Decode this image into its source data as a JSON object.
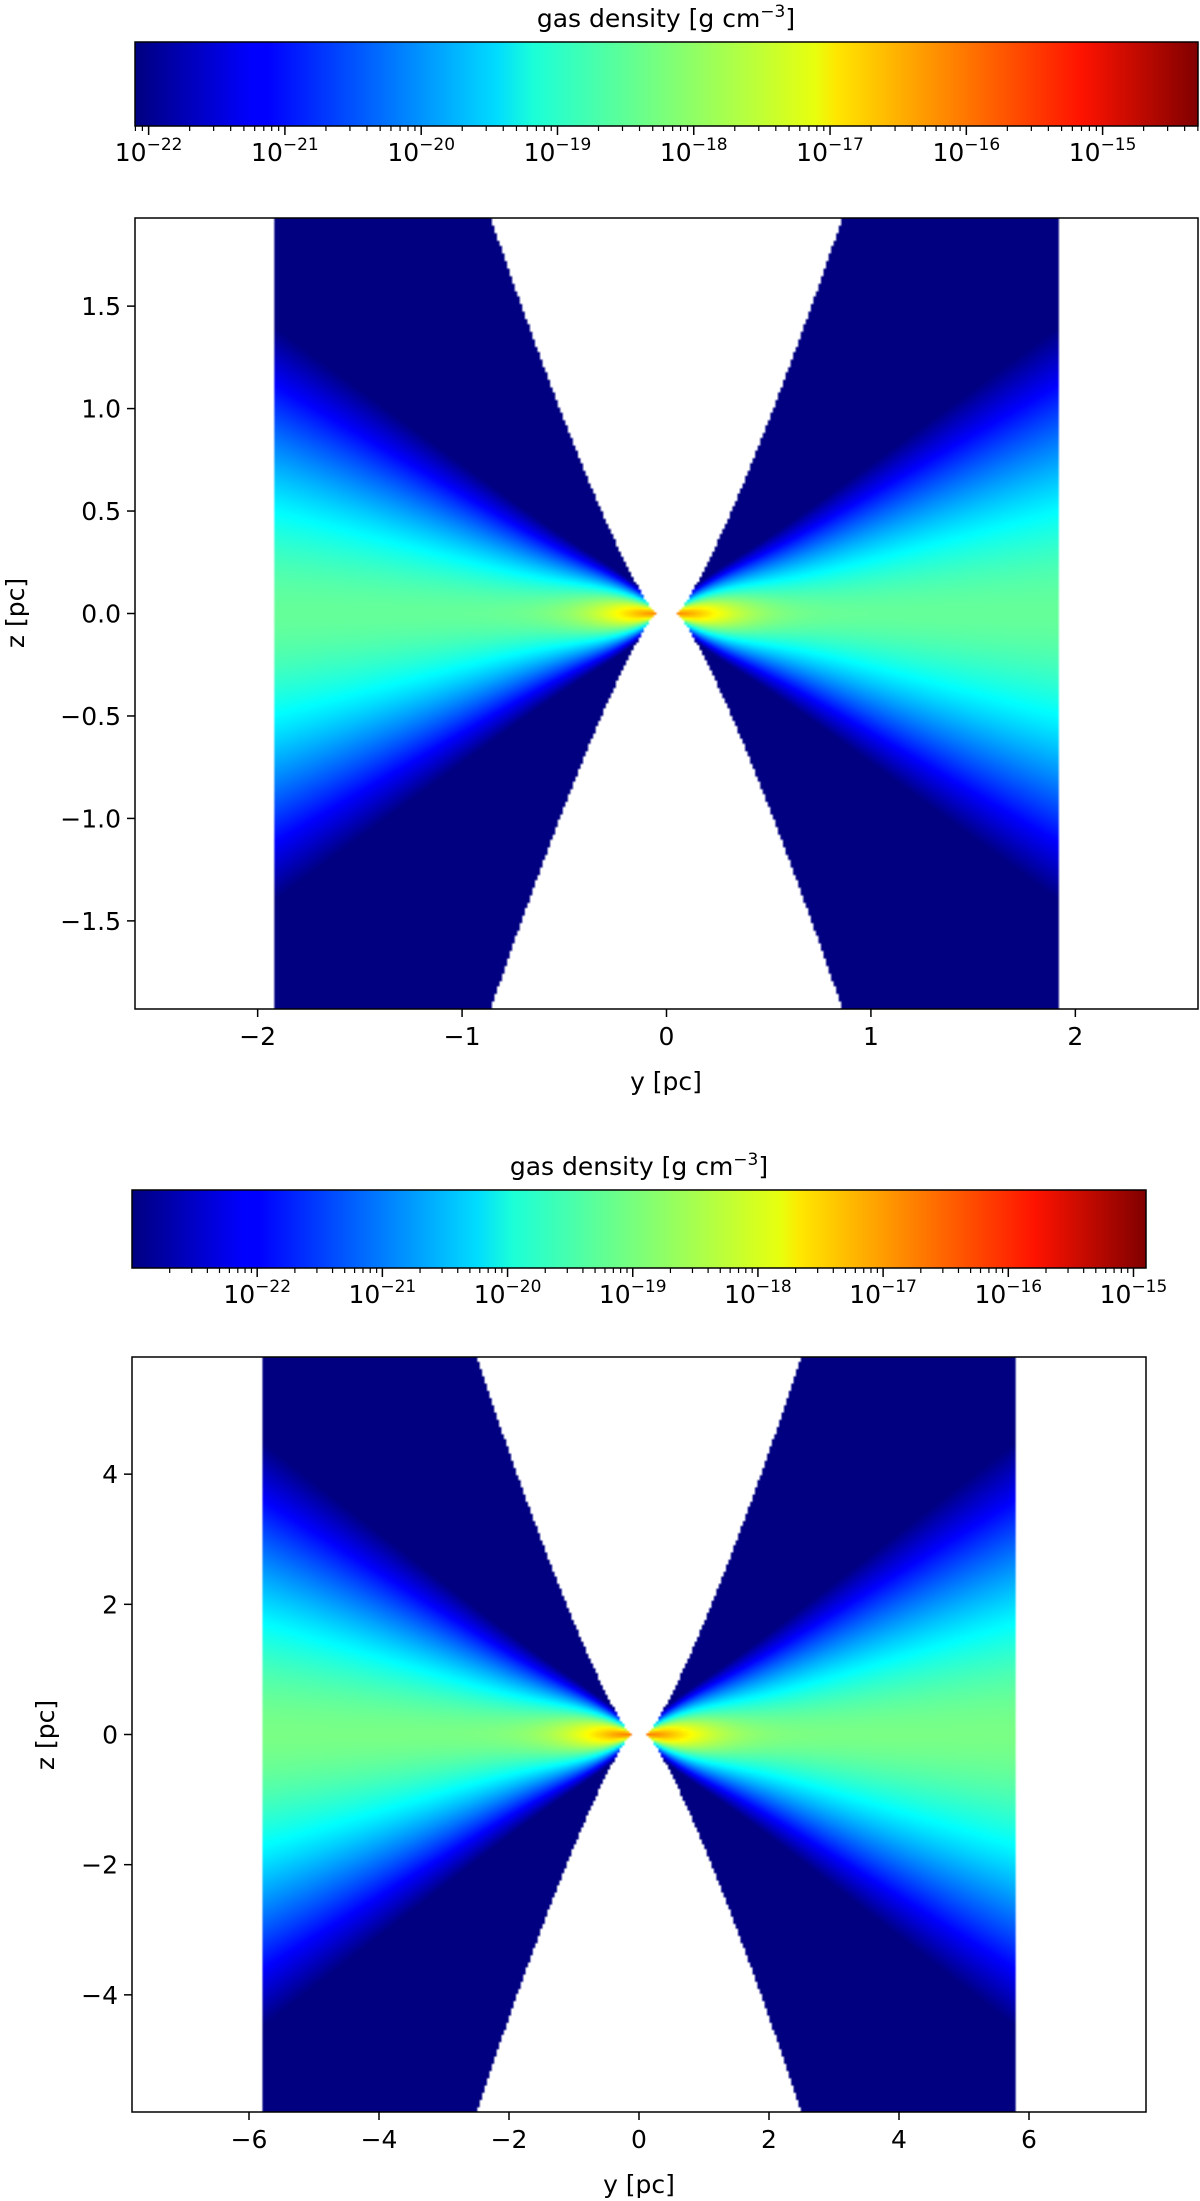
{
  "chart_data": [
    {
      "type": "heatmap",
      "title": "",
      "xlabel": "y [pc]",
      "ylabel": "z [pc]",
      "xlim": [
        -2.6,
        2.6
      ],
      "ylim": [
        -1.93,
        1.93
      ],
      "xticks": [
        -2,
        -1,
        0,
        1,
        2
      ],
      "yticks": [
        -1.5,
        -1.0,
        -0.5,
        0.0,
        0.5,
        1.0,
        1.5
      ],
      "xtick_labels": [
        "−2",
        "−1",
        "0",
        "1",
        "2"
      ],
      "ytick_labels": [
        "−1.5",
        "−1.0",
        "−0.5",
        "0.0",
        "0.5",
        "1.0",
        "1.5"
      ],
      "colormap": "jet",
      "colorbar": {
        "label": "gas density [g cm",
        "label_exponent": "−3",
        "label_suffix": "]",
        "scale": "log",
        "range_log10": [
          -22.1,
          -14.3
        ],
        "ticks_log10": [
          -22,
          -21,
          -20,
          -19,
          -18,
          -17,
          -16,
          -15
        ],
        "tick_bases": [
          "10",
          "10",
          "10",
          "10",
          "10",
          "10",
          "10",
          "10"
        ],
        "tick_exponents": [
          "−22",
          "−21",
          "−20",
          "−19",
          "−18",
          "−17",
          "−16",
          "−15"
        ],
        "position": "top"
      },
      "domain": {
        "y_extent": [
          -1.92,
          1.92
        ],
        "cone_edge_y_at_z_limit": 0.86,
        "inner_gap_y": 0.05,
        "density_log10_peak": -16.2,
        "density_log10_midplane_edge": -18.4,
        "density_log10_floor": -22.1
      }
    },
    {
      "type": "heatmap",
      "title": "",
      "xlabel": "y [pc]",
      "ylabel": "z [pc]",
      "xlim": [
        -7.8,
        7.8
      ],
      "ylim": [
        -5.8,
        5.8
      ],
      "xticks": [
        -6,
        -4,
        -2,
        0,
        2,
        4,
        6
      ],
      "yticks": [
        -4,
        -2,
        0,
        2,
        4
      ],
      "xtick_labels": [
        "−6",
        "−4",
        "−2",
        "0",
        "2",
        "4",
        "6"
      ],
      "ytick_labels": [
        "−4",
        "−2",
        "0",
        "2",
        "4"
      ],
      "colormap": "jet",
      "colorbar": {
        "label": "gas density [g cm",
        "label_exponent": "−3",
        "label_suffix": "]",
        "scale": "log",
        "range_log10": [
          -23.0,
          -14.9
        ],
        "ticks_log10": [
          -22,
          -21,
          -20,
          -19,
          -18,
          -17,
          -16,
          -15
        ],
        "tick_bases": [
          "10",
          "10",
          "10",
          "10",
          "10",
          "10",
          "10",
          "10"
        ],
        "tick_exponents": [
          "−22",
          "−21",
          "−20",
          "−19",
          "−18",
          "−17",
          "−16",
          "−15"
        ],
        "position": "top"
      },
      "domain": {
        "y_extent": [
          -5.78,
          5.78
        ],
        "cone_edge_y_at_z_limit": 2.5,
        "inner_gap_y": 0.12,
        "density_log10_peak": -16.8,
        "density_log10_midplane_edge": -19.0,
        "density_log10_floor": -23.0
      }
    }
  ]
}
